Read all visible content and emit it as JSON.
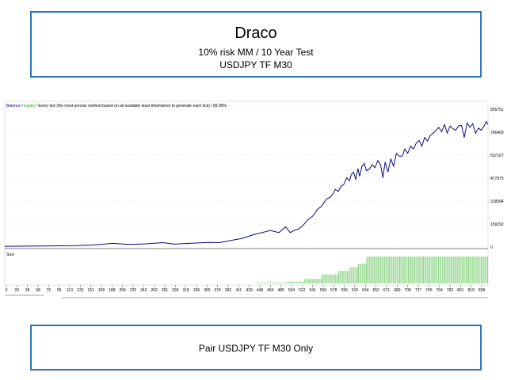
{
  "header": {
    "title": "Draco",
    "line2": "10% risk MM / 10 Year Test",
    "line3": "USDJPY TF M30"
  },
  "footer": {
    "text": "Pair USDJPY TF M30 Only"
  },
  "chart_data": {
    "type": "line",
    "legend": [
      {
        "name": "Balance",
        "color": "#0a0a7a"
      },
      {
        "name": "Equity",
        "color": "#2ca02c"
      }
    ],
    "legend_separator": " / ",
    "legend_note": "Every tick (the most precise method based on all available least timeframes to generate each tick) / 99.90%",
    "yticks": [
      "0",
      "159292",
      "318584",
      "477875",
      "637167",
      "796459",
      "955751"
    ],
    "ylim": [
      0,
      955751
    ],
    "xticks": [
      "0",
      "20",
      "39",
      "58",
      "76",
      "95",
      "113",
      "132",
      "151",
      "169",
      "188",
      "206",
      "225",
      "243",
      "262",
      "281",
      "299",
      "318",
      "336",
      "355",
      "374",
      "392",
      "411",
      "429",
      "448",
      "466",
      "485",
      "504",
      "522",
      "541",
      "559",
      "578",
      "596",
      "615",
      "634",
      "652",
      "671",
      "689",
      "708",
      "727",
      "745",
      "764",
      "782",
      "801",
      "819",
      "838"
    ],
    "xlim": [
      0,
      855
    ],
    "balance": {
      "x": [
        0,
        60,
        120,
        160,
        190,
        220,
        250,
        280,
        300,
        330,
        360,
        380,
        400,
        420,
        440,
        455,
        470,
        485,
        497,
        505,
        512,
        520,
        528,
        535,
        540,
        545,
        548,
        552,
        556,
        560,
        565,
        570,
        576,
        580,
        585,
        590,
        595,
        600,
        605,
        610,
        613,
        617,
        621,
        625,
        628,
        632,
        636,
        640,
        645,
        650,
        655,
        660,
        665,
        669,
        673,
        678,
        683,
        688,
        693,
        698,
        703,
        708,
        713,
        718,
        723,
        728,
        733,
        738,
        743,
        748,
        753,
        758,
        763,
        768,
        773,
        778,
        783,
        788,
        793,
        798,
        803,
        808,
        813,
        818,
        823,
        828,
        833,
        838,
        843,
        848,
        852,
        855
      ],
      "y": [
        5000,
        7000,
        9000,
        15000,
        25000,
        18000,
        22000,
        30000,
        20000,
        26000,
        32000,
        30000,
        45000,
        60000,
        85000,
        100000,
        115000,
        100000,
        140000,
        100000,
        115000,
        125000,
        150000,
        185000,
        200000,
        215000,
        230000,
        255000,
        270000,
        280000,
        310000,
        335000,
        345000,
        365000,
        400000,
        385000,
        420000,
        435000,
        480000,
        460000,
        500000,
        520000,
        470000,
        545000,
        490000,
        560000,
        580000,
        530000,
        540000,
        570000,
        550000,
        600000,
        570000,
        480000,
        590000,
        520000,
        610000,
        560000,
        650000,
        630000,
        630000,
        680000,
        650000,
        700000,
        680000,
        720000,
        740000,
        700000,
        760000,
        735000,
        775000,
        790000,
        810000,
        830000,
        800000,
        850000,
        790000,
        840000,
        820000,
        810000,
        840000,
        845000,
        760000,
        860000,
        830000,
        855000,
        790000,
        825000,
        810000,
        840000,
        870000,
        850000
      ]
    },
    "size_panel": {
      "label": "Size",
      "color": "#90d68a",
      "x": [
        0,
        440,
        445,
        500,
        530,
        560,
        590,
        610,
        625,
        640,
        660,
        680,
        700,
        720,
        740,
        760,
        780,
        800,
        820,
        855
      ],
      "values": [
        0,
        0.5,
        1,
        2,
        5,
        10,
        14,
        18,
        22,
        30,
        30,
        30,
        30,
        30,
        30,
        30,
        30,
        30,
        30,
        30
      ]
    }
  }
}
